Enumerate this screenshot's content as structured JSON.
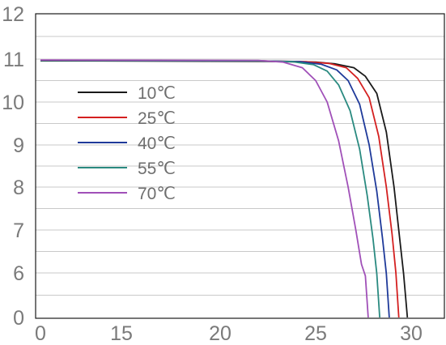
{
  "chart_data": {
    "type": "line",
    "title": "",
    "xlabel": "",
    "ylabel": "",
    "x_ticks": [
      "0",
      "15",
      "20",
      "25",
      "30"
    ],
    "y_ticks": [
      "0",
      "6",
      "7",
      "8",
      "9",
      "10",
      "11",
      "12"
    ],
    "grid": "horizontal",
    "legend_placement": "upper-left",
    "series": [
      {
        "name": "10℃",
        "color": "#1a1a1a",
        "points": [
          [
            0,
            10.96
          ],
          [
            22,
            10.95
          ],
          [
            25,
            10.93
          ],
          [
            26,
            10.89
          ],
          [
            27,
            10.8
          ],
          [
            27.6,
            10.6
          ],
          [
            28.2,
            10.2
          ],
          [
            28.7,
            9.3
          ],
          [
            29.1,
            8.0
          ],
          [
            29.4,
            6.8
          ],
          [
            29.6,
            5.9
          ],
          [
            29.8,
            0
          ]
        ]
      },
      {
        "name": "25℃",
        "color": "#d42020",
        "points": [
          [
            0,
            10.97
          ],
          [
            22,
            10.96
          ],
          [
            24.5,
            10.94
          ],
          [
            25.7,
            10.9
          ],
          [
            26.6,
            10.8
          ],
          [
            27.2,
            10.55
          ],
          [
            27.8,
            10.1
          ],
          [
            28.3,
            9.2
          ],
          [
            28.7,
            8.0
          ],
          [
            29.0,
            6.9
          ],
          [
            29.2,
            6.0
          ],
          [
            29.35,
            0
          ]
        ]
      },
      {
        "name": "40℃",
        "color": "#1f3a9a",
        "points": [
          [
            0,
            10.97
          ],
          [
            22,
            10.96
          ],
          [
            24.2,
            10.94
          ],
          [
            25.3,
            10.88
          ],
          [
            26.1,
            10.75
          ],
          [
            26.7,
            10.5
          ],
          [
            27.3,
            9.95
          ],
          [
            27.8,
            9.0
          ],
          [
            28.2,
            7.9
          ],
          [
            28.5,
            6.8
          ],
          [
            28.7,
            5.9
          ],
          [
            28.85,
            0
          ]
        ]
      },
      {
        "name": "55℃",
        "color": "#2a8a80",
        "points": [
          [
            0,
            10.97
          ],
          [
            22,
            10.96
          ],
          [
            23.8,
            10.94
          ],
          [
            24.9,
            10.87
          ],
          [
            25.6,
            10.72
          ],
          [
            26.2,
            10.4
          ],
          [
            26.8,
            9.8
          ],
          [
            27.3,
            8.9
          ],
          [
            27.7,
            7.8
          ],
          [
            28.0,
            6.8
          ],
          [
            28.2,
            5.9
          ],
          [
            28.35,
            0
          ]
        ]
      },
      {
        "name": "70℃",
        "color": "#a050b8",
        "points": [
          [
            0,
            10.98
          ],
          [
            22,
            10.97
          ],
          [
            23.3,
            10.93
          ],
          [
            24.3,
            10.8
          ],
          [
            25.0,
            10.5
          ],
          [
            25.6,
            10.0
          ],
          [
            26.2,
            9.1
          ],
          [
            26.7,
            8.0
          ],
          [
            27.1,
            7.0
          ],
          [
            27.4,
            6.2
          ],
          [
            27.6,
            5.6
          ],
          [
            27.75,
            0
          ]
        ]
      }
    ]
  }
}
